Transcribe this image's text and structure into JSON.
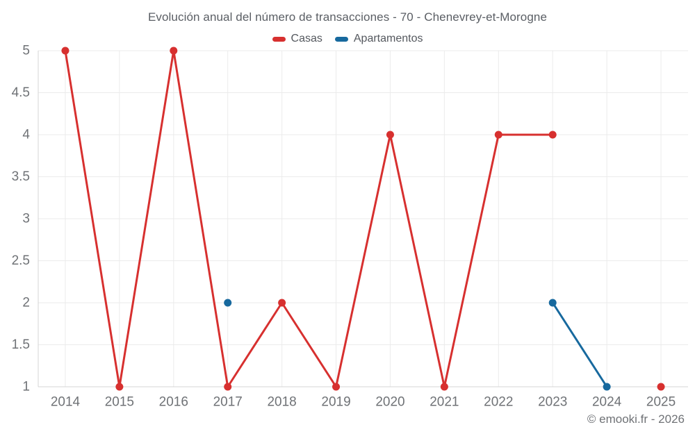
{
  "header": {
    "title": "Evolución anual del número de transacciones - 70 - Chenevrey-et-Morogne"
  },
  "footer": {
    "attribution": "© emooki.fr - 2026"
  },
  "chart_data": {
    "type": "line",
    "title": "Evolución anual del número de transacciones - 70 - Chenevrey-et-Morogne",
    "categories": [
      "2014",
      "2015",
      "2016",
      "2017",
      "2018",
      "2019",
      "2020",
      "2021",
      "2022",
      "2023",
      "2024",
      "2025"
    ],
    "series": [
      {
        "name": "Casas",
        "color": "#d7302f",
        "values": [
          5,
          1,
          5,
          1,
          2,
          1,
          4,
          1,
          4,
          4,
          null,
          1
        ]
      },
      {
        "name": "Apartamentos",
        "color": "#17699e",
        "values": [
          null,
          null,
          null,
          2,
          null,
          null,
          null,
          null,
          null,
          2,
          1,
          null
        ]
      }
    ],
    "xlabel": "",
    "ylabel": "",
    "ylim": [
      1,
      5
    ],
    "y_tick_labels": [
      "1",
      "1.5",
      "2",
      "2.5",
      "3",
      "3.5",
      "4",
      "4.5",
      "5"
    ],
    "x_tick_labels": [
      "2014",
      "2015",
      "2016",
      "2017",
      "2018",
      "2019",
      "2020",
      "2021",
      "2022",
      "2023",
      "2024",
      "2025"
    ],
    "grid": true,
    "legend_position": "top-center",
    "marker_radius": 5.5,
    "line_width": 3
  },
  "theme": {
    "background": "#ffffff",
    "grid_color": "#ebebeb",
    "axis_border_color": "#d4d4d4",
    "tick_label_color": "#6f7276",
    "title_color": "#5a5e64",
    "legend_text_color": "#54585e",
    "footer_color": "#6f7276"
  }
}
